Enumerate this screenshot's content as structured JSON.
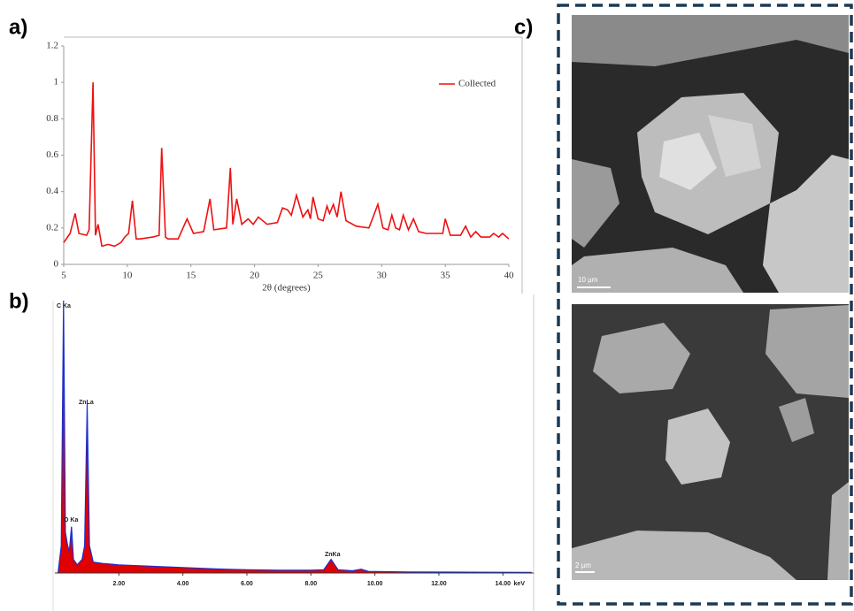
{
  "panel_labels": [
    "a)",
    "b)",
    "c)"
  ],
  "sem_scale_bars": [
    "10 µm",
    "2 µm"
  ],
  "chart_data": [
    {
      "type": "line",
      "x_label": "2θ (degrees)",
      "legend": "top-right",
      "x": [
        5,
        5.5,
        5.9,
        6.2,
        6.8,
        7.0,
        7.3,
        7.5,
        7.7,
        8.0,
        8.5,
        9.0,
        9.5,
        9.8,
        10.1,
        10.4,
        10.7,
        11.0,
        12.0,
        12.5,
        12.7,
        13.0,
        13.2,
        14.0,
        14.7,
        15.2,
        16.0,
        16.5,
        16.8,
        17.8,
        18.1,
        18.3,
        18.6,
        19.0,
        19.5,
        19.9,
        20.3,
        21.0,
        21.8,
        22.2,
        22.6,
        22.9,
        23.3,
        23.8,
        24.2,
        24.4,
        24.6,
        25.0,
        25.4,
        25.7,
        25.9,
        26.2,
        26.5,
        26.8,
        27.2,
        28.0,
        29.0,
        29.7,
        30.1,
        30.5,
        30.8,
        31.1,
        31.4,
        31.7,
        32.1,
        32.5,
        32.9,
        33.5,
        34.3,
        34.8,
        35.0,
        35.4,
        36.2,
        36.6,
        37.0,
        37.4,
        37.8,
        38.5,
        38.8,
        39.2,
        39.5,
        40
      ],
      "series": [
        {
          "name": "Collected",
          "color": "#ee1111",
          "values": [
            0.12,
            0.17,
            0.28,
            0.17,
            0.16,
            0.19,
            1.0,
            0.16,
            0.22,
            0.1,
            0.11,
            0.1,
            0.12,
            0.15,
            0.17,
            0.35,
            0.14,
            0.14,
            0.15,
            0.16,
            0.64,
            0.15,
            0.14,
            0.14,
            0.25,
            0.17,
            0.18,
            0.36,
            0.19,
            0.2,
            0.53,
            0.22,
            0.36,
            0.22,
            0.25,
            0.22,
            0.26,
            0.22,
            0.23,
            0.31,
            0.3,
            0.27,
            0.38,
            0.26,
            0.3,
            0.25,
            0.37,
            0.25,
            0.24,
            0.32,
            0.28,
            0.33,
            0.26,
            0.4,
            0.24,
            0.21,
            0.2,
            0.33,
            0.2,
            0.19,
            0.27,
            0.2,
            0.19,
            0.27,
            0.19,
            0.25,
            0.18,
            0.17,
            0.17,
            0.17,
            0.25,
            0.16,
            0.16,
            0.21,
            0.15,
            0.18,
            0.15,
            0.15,
            0.17,
            0.15,
            0.17,
            0.14
          ]
        }
      ],
      "xlim": [
        5,
        40
      ],
      "xticks": [
        5,
        10,
        15,
        20,
        25,
        30,
        35,
        40
      ],
      "ylim": [
        0,
        1.2
      ],
      "yticks": [
        0,
        0.2,
        0.4,
        0.6,
        0.8,
        1,
        1.2
      ]
    },
    {
      "type": "area",
      "x_label": "keV",
      "color": "#e00000",
      "line_color": "#1a2fd0",
      "x": [
        0.1,
        0.2,
        0.27,
        0.33,
        0.4,
        0.45,
        0.52,
        0.58,
        0.7,
        0.85,
        0.93,
        1.01,
        1.08,
        1.2,
        1.5,
        2,
        3,
        4,
        5,
        6,
        7,
        8,
        8.4,
        8.63,
        8.85,
        9.3,
        9.57,
        9.8,
        11,
        13,
        14.9
      ],
      "values": [
        0,
        0.1,
        1.0,
        0.15,
        0.1,
        0.08,
        0.17,
        0.05,
        0.03,
        0.05,
        0.1,
        0.62,
        0.1,
        0.04,
        0.035,
        0.03,
        0.025,
        0.02,
        0.015,
        0.012,
        0.01,
        0.01,
        0.012,
        0.05,
        0.012,
        0.008,
        0.014,
        0.006,
        0.004,
        0.003,
        0.002
      ],
      "annotations": [
        "C Ka",
        "ZnLa",
        "O Ka",
        "ZnKa"
      ],
      "xlim": [
        0,
        14.96
      ],
      "ylim": [
        0,
        1
      ],
      "xticks": [
        {
          "value": 2,
          "label": "2.00"
        },
        {
          "value": 4,
          "label": "4.00"
        },
        {
          "value": 6,
          "label": "6.00"
        },
        {
          "value": 8,
          "label": "8.00"
        },
        {
          "value": 10,
          "label": "10.00"
        },
        {
          "value": 12,
          "label": "12.00"
        },
        {
          "value": 14,
          "label": "14.00"
        }
      ]
    }
  ]
}
